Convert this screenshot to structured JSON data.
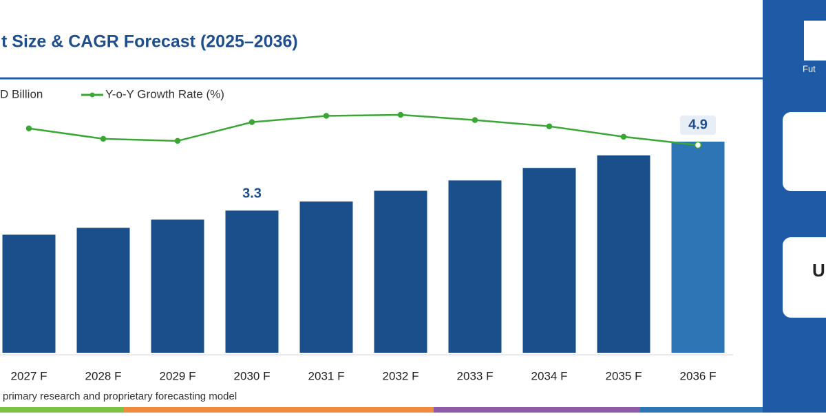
{
  "chart_data": {
    "type": "bar-line",
    "title": "t Size & CAGR Forecast (2025–2036)",
    "categories": [
      "2027 F",
      "2028 F",
      "2029 F",
      "2030 F",
      "2031 F",
      "2032 F",
      "2033 F",
      "2034 F",
      "2035 F",
      "2036 F"
    ],
    "series": [
      {
        "name": "D Billion",
        "type": "bar",
        "color": "#1b4f8c",
        "highlight_color": "#2e75b6",
        "values": [
          2.74,
          2.9,
          3.09,
          3.3,
          3.51,
          3.76,
          4.0,
          4.29,
          4.58,
          4.9
        ],
        "value_labels": [
          null,
          null,
          null,
          "3.3",
          null,
          null,
          null,
          null,
          null,
          "4.9"
        ]
      },
      {
        "name": "Y-o-Y Growth Rate (%)",
        "type": "line",
        "axis": "y2",
        "color": "#3aa635",
        "values": [
          4.5,
          4.0,
          3.9,
          4.8,
          5.1,
          5.15,
          4.9,
          4.6,
          4.1,
          3.7
        ]
      }
    ],
    "source": "primary research and proprietary forecasting model"
  },
  "sidebar": {
    "logo_text": "Fut",
    "card_text": "U"
  }
}
